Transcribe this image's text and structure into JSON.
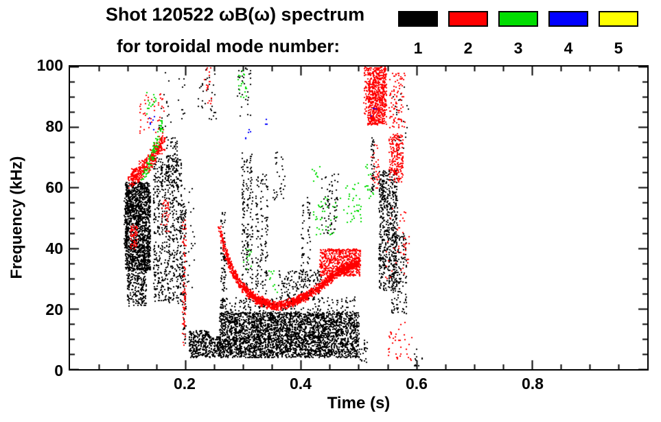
{
  "chart_data": {
    "type": "scatter",
    "title": "Shot 120522 ωB(ω) spectrum",
    "subtitle": "for toroidal mode number:",
    "xlabel": "Time (s)",
    "ylabel": "Frequency (kHz)",
    "xlim": [
      0.0,
      1.0
    ],
    "ylim": [
      0,
      100
    ],
    "grid": false,
    "xticks": {
      "major": [
        0.2,
        0.4,
        0.6,
        0.8
      ],
      "labels": [
        "0.2",
        "0.4",
        "0.6",
        "0.8"
      ],
      "minor_step": 0.05
    },
    "yticks": {
      "major": [
        0,
        20,
        40,
        60,
        80,
        100
      ],
      "labels": [
        "0",
        "20",
        "40",
        "60",
        "80",
        "100"
      ],
      "minor_step": 5
    },
    "legend": {
      "position": "top-right",
      "entries": [
        {
          "label": "1",
          "color": "#000000"
        },
        {
          "label": "2",
          "color": "#ff0000"
        },
        {
          "label": "3",
          "color": "#00dd00"
        },
        {
          "label": "4",
          "color": "#0000ff"
        },
        {
          "label": "5",
          "color": "#ffff00"
        }
      ]
    },
    "series": [
      {
        "name": "n=1",
        "color": "#000000",
        "clusters": [
          {
            "type": "box",
            "t": [
              0.095,
              0.138
            ],
            "f": [
              33,
              62
            ],
            "n": 1500
          },
          {
            "type": "box",
            "t": [
              0.098,
              0.132
            ],
            "f": [
              21,
              34
            ],
            "n": 220
          },
          {
            "type": "box",
            "t": [
              0.093,
              0.1
            ],
            "f": [
              40,
              58
            ],
            "n": 80
          },
          {
            "type": "vlines",
            "ts": [
              0.146,
              0.152,
              0.158,
              0.165,
              0.171,
              0.178,
              0.185,
              0.191
            ],
            "f": [
              22,
              70
            ],
            "w": 0.0025,
            "n": 80
          },
          {
            "type": "vlines",
            "ts": [
              0.168,
              0.175,
              0.182
            ],
            "f": [
              60,
              77
            ],
            "w": 0.0025,
            "n": 30
          },
          {
            "type": "vlines",
            "ts": [
              0.197
            ],
            "f": [
              8,
              55
            ],
            "w": 0.003,
            "n": 80
          },
          {
            "type": "box",
            "t": [
              0.205,
              0.24
            ],
            "f": [
              4,
              13
            ],
            "n": 260
          },
          {
            "type": "box",
            "t": [
              0.24,
              0.26
            ],
            "f": [
              4,
              11
            ],
            "n": 120
          },
          {
            "type": "box",
            "t": [
              0.258,
              0.5
            ],
            "f": [
              4,
              19
            ],
            "n": 2800
          },
          {
            "type": "vlines",
            "ts": [
              0.262,
              0.27,
              0.278,
              0.286,
              0.294,
              0.302,
              0.31,
              0.318,
              0.326,
              0.334,
              0.342,
              0.35,
              0.358,
              0.366,
              0.374,
              0.382,
              0.39,
              0.398,
              0.406,
              0.414,
              0.422,
              0.43,
              0.438,
              0.446,
              0.454,
              0.462,
              0.47,
              0.478,
              0.486,
              0.494
            ],
            "f": [
              4,
              24
            ],
            "w": 0.0025,
            "n": 22
          },
          {
            "type": "vlines",
            "ts": [
              0.262,
              0.267
            ],
            "f": [
              20,
              52
            ],
            "w": 0.0025,
            "n": 45
          },
          {
            "type": "vlines",
            "ts": [
              0.299,
              0.306,
              0.313
            ],
            "f": [
              25,
              72
            ],
            "w": 0.0025,
            "n": 60
          },
          {
            "type": "vlines",
            "ts": [
              0.323,
              0.331,
              0.339
            ],
            "f": [
              25,
              65
            ],
            "w": 0.0025,
            "n": 45
          },
          {
            "type": "box",
            "t": [
              0.36,
              0.435
            ],
            "f": [
              23,
              33
            ],
            "n": 160
          },
          {
            "type": "vlines",
            "ts": [
              0.402,
              0.412
            ],
            "f": [
              25,
              57
            ],
            "w": 0.0025,
            "n": 30
          },
          {
            "type": "box",
            "t": [
              0.435,
              0.465
            ],
            "f": [
              45,
              65
            ],
            "n": 70
          },
          {
            "type": "vlines",
            "ts": [
              0.524
            ],
            "f": [
              58,
              77
            ],
            "w": 0.003,
            "n": 45
          },
          {
            "type": "box",
            "t": [
              0.534,
              0.566
            ],
            "f": [
              26,
              66
            ],
            "n": 550
          },
          {
            "type": "box",
            "t": [
              0.556,
              0.582
            ],
            "f": [
              18,
              45
            ],
            "n": 160
          },
          {
            "type": "box",
            "t": [
              0.22,
              0.252
            ],
            "f": [
              82,
              100
            ],
            "n": 35
          },
          {
            "type": "box",
            "t": [
              0.288,
              0.312
            ],
            "f": [
              84,
              100
            ],
            "n": 30
          },
          {
            "type": "box",
            "t": [
              0.35,
              0.372
            ],
            "f": [
              55,
              72
            ],
            "n": 30
          },
          {
            "type": "box",
            "t": [
              0.152,
              0.2
            ],
            "f": [
              80,
              100
            ],
            "n": 25
          },
          {
            "type": "box",
            "t": [
              0.558,
              0.585
            ],
            "f": [
              72,
              95
            ],
            "n": 30
          },
          {
            "type": "box",
            "t": [
              0.19,
              0.215
            ],
            "f": [
              25,
              60
            ],
            "n": 30
          },
          {
            "type": "box",
            "t": [
              0.595,
              0.61
            ],
            "f": [
              1,
              7
            ],
            "n": 12
          },
          {
            "type": "box",
            "t": [
              0.5,
              0.515
            ],
            "f": [
              2,
              10
            ],
            "n": 20
          }
        ]
      },
      {
        "name": "n=2",
        "color": "#ff0000",
        "clusters": [
          {
            "type": "path",
            "pts": [
              [
                0.102,
                63
              ],
              [
                0.118,
                65
              ],
              [
                0.133,
                68
              ],
              [
                0.148,
                72
              ],
              [
                0.162,
                76
              ]
            ],
            "spread": 3.5,
            "n": 380
          },
          {
            "type": "box",
            "t": [
              0.118,
              0.162
            ],
            "f": [
              78,
              92
            ],
            "n": 45
          },
          {
            "type": "box",
            "t": [
              0.103,
              0.116
            ],
            "f": [
              40,
              48
            ],
            "n": 60
          },
          {
            "type": "box",
            "t": [
              0.155,
              0.17
            ],
            "f": [
              45,
              56
            ],
            "n": 35
          },
          {
            "type": "vlines",
            "ts": [
              0.1965
            ],
            "f": [
              8,
              50
            ],
            "w": 0.003,
            "n": 70
          },
          {
            "type": "path",
            "pts": [
              [
                0.257,
                47
              ],
              [
                0.268,
                39
              ],
              [
                0.28,
                33
              ],
              [
                0.295,
                28
              ],
              [
                0.31,
                25
              ],
              [
                0.33,
                22.5
              ],
              [
                0.355,
                21
              ],
              [
                0.38,
                22
              ],
              [
                0.405,
                24
              ],
              [
                0.425,
                26.5
              ],
              [
                0.445,
                29.5
              ],
              [
                0.465,
                32.5
              ],
              [
                0.485,
                34.5
              ],
              [
                0.5,
                35.5
              ]
            ],
            "spread": 1.8,
            "n": 1600
          },
          {
            "type": "box",
            "t": [
              0.432,
              0.502
            ],
            "f": [
              31,
              40
            ],
            "n": 550
          },
          {
            "type": "box",
            "t": [
              0.515,
              0.547
            ],
            "f": [
              81,
              100
            ],
            "n": 650
          },
          {
            "type": "vlines",
            "ts": [
              0.511
            ],
            "f": [
              84,
              100
            ],
            "w": 0.003,
            "n": 40
          },
          {
            "type": "box",
            "t": [
              0.552,
              0.576
            ],
            "f": [
              62,
              78
            ],
            "n": 200
          },
          {
            "type": "box",
            "t": [
              0.552,
              0.58
            ],
            "f": [
              80,
              98
            ],
            "n": 90
          },
          {
            "type": "box",
            "t": [
              0.545,
              0.588
            ],
            "f": [
              30,
              56
            ],
            "n": 45
          },
          {
            "type": "box",
            "t": [
              0.55,
              0.592
            ],
            "f": [
              3,
              16
            ],
            "n": 35
          },
          {
            "type": "box",
            "t": [
              0.232,
              0.245
            ],
            "f": [
              88,
              100
            ],
            "n": 18
          },
          {
            "type": "box",
            "t": [
              0.52,
              0.535
            ],
            "f": [
              60,
              75
            ],
            "n": 30
          }
        ]
      },
      {
        "name": "n=3",
        "color": "#00dd00",
        "clusters": [
          {
            "type": "path",
            "pts": [
              [
                0.124,
                62
              ],
              [
                0.138,
                69
              ],
              [
                0.15,
                76
              ],
              [
                0.158,
                82
              ]
            ],
            "spread": 2.5,
            "n": 90
          },
          {
            "type": "box",
            "t": [
              0.128,
              0.148
            ],
            "f": [
              84,
              92
            ],
            "n": 15
          },
          {
            "type": "box",
            "t": [
              0.29,
              0.306
            ],
            "f": [
              90,
              99
            ],
            "n": 18
          },
          {
            "type": "box",
            "t": [
              0.42,
              0.462
            ],
            "f": [
              44,
              58
            ],
            "n": 35
          },
          {
            "type": "box",
            "t": [
              0.465,
              0.503
            ],
            "f": [
              48,
              62
            ],
            "n": 35
          },
          {
            "type": "box",
            "t": [
              0.508,
              0.526
            ],
            "f": [
              55,
              68
            ],
            "n": 16
          },
          {
            "type": "box",
            "t": [
              0.344,
              0.358
            ],
            "f": [
              25,
              33
            ],
            "n": 10
          },
          {
            "type": "box",
            "t": [
              0.418,
              0.432
            ],
            "f": [
              62,
              68
            ],
            "n": 8
          },
          {
            "type": "box",
            "t": [
              0.3,
              0.315
            ],
            "f": [
              33,
              42
            ],
            "n": 10
          }
        ]
      },
      {
        "name": "n=4",
        "color": "#0000ff",
        "clusters": [
          {
            "type": "box",
            "t": [
              0.137,
              0.146
            ],
            "f": [
              78,
              84
            ],
            "n": 6
          },
          {
            "type": "box",
            "t": [
              0.3,
              0.312
            ],
            "f": [
              75,
              80
            ],
            "n": 5
          },
          {
            "type": "box",
            "t": [
              0.52,
              0.532
            ],
            "f": [
              83,
              88
            ],
            "n": 4
          },
          {
            "type": "box",
            "t": [
              0.334,
              0.342
            ],
            "f": [
              80,
              84
            ],
            "n": 3
          }
        ]
      },
      {
        "name": "n=5",
        "color": "#ffff00",
        "clusters": []
      }
    ]
  }
}
